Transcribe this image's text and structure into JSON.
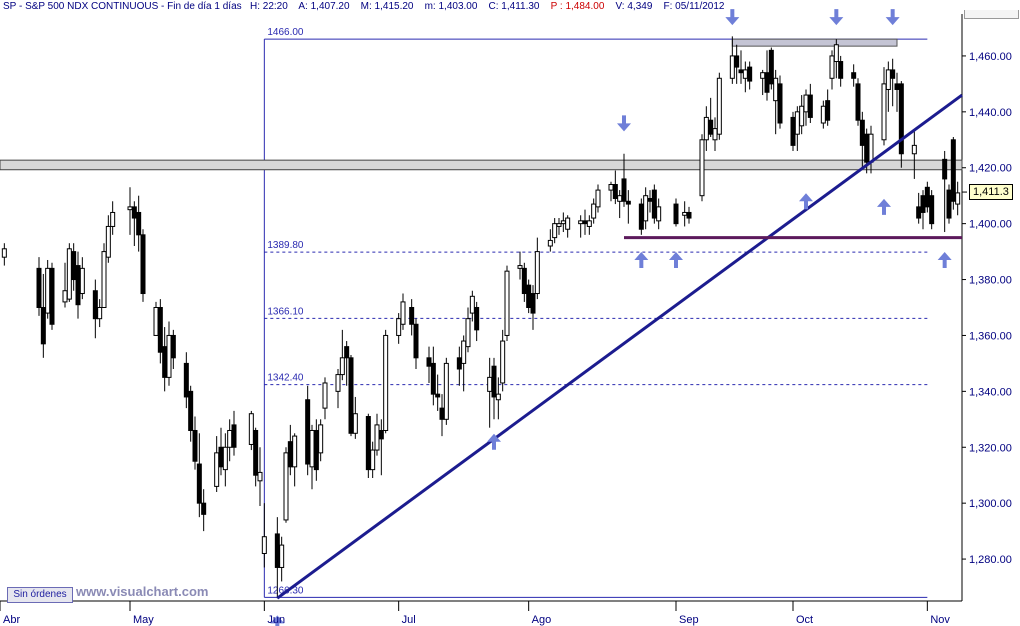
{
  "header": {
    "symbol": "SP",
    "name": "S&P 500 NDX CONTINUOUS",
    "period": "Fin de día 1 días",
    "time": "H: 22:20",
    "open": "A: 1,407.20",
    "high": "M: 1,415.20",
    "low": "m: 1,403.00",
    "close": "C: 1,411.30",
    "p": "P : 1,484.00",
    "volume": "V: 4,349",
    "date": "F: 05/11/2012"
  },
  "footer": {
    "button_label": "Sin órdenes",
    "watermark": "www.visualchart.com"
  },
  "price_tag": "1,411.3",
  "colors": {
    "axis_text": "#000080",
    "trendline": "#1c1c8f",
    "support": "#5c1a5c",
    "arrows": "#6f7fd8",
    "fib": "#2a2ab0"
  },
  "chart_data": {
    "type": "candlestick",
    "title": "S&P 500 NDX CONTINUOUS",
    "y_axis": {
      "range": [
        1265,
        1475
      ],
      "ticks": [
        1280,
        1300,
        1320,
        1340,
        1360,
        1380,
        1400,
        1420,
        1440,
        1460
      ],
      "tick_labels": [
        "1,280.00",
        "1,300.00",
        "1,320.00",
        "1,340.00",
        "1,360.00",
        "1,380.00",
        "1,400.00",
        "1,420.00",
        "1,440.00",
        "1,460.00"
      ],
      "position": "right"
    },
    "x_axis": {
      "range": [
        "2012-04-01",
        "2012-11-09"
      ],
      "ticks": [
        "2012-04-01",
        "2012-05-01",
        "2012-06-01",
        "2012-07-02",
        "2012-08-01",
        "2012-09-04",
        "2012-10-01",
        "2012-11-01"
      ],
      "tick_labels": [
        "Abr",
        "May",
        "Jun",
        "Jul",
        "Ago",
        "Sep",
        "Oct",
        "Nov"
      ]
    },
    "candles": [
      [
        "2012-04-02",
        1388,
        1393,
        1385,
        1391
      ],
      [
        "2012-04-10",
        1384,
        1388,
        1367,
        1370
      ],
      [
        "2012-04-11",
        1370,
        1382,
        1352,
        1357
      ],
      [
        "2012-04-12",
        1368,
        1387,
        1366,
        1384
      ],
      [
        "2012-04-13",
        1384,
        1386,
        1362,
        1364
      ],
      [
        "2012-04-16",
        1372,
        1386,
        1370,
        1376
      ],
      [
        "2012-04-17",
        1373,
        1393,
        1372,
        1391
      ],
      [
        "2012-04-18",
        1390,
        1393,
        1376,
        1380
      ],
      [
        "2012-04-19",
        1385,
        1390,
        1366,
        1371
      ],
      [
        "2012-04-20",
        1375,
        1388,
        1373,
        1384
      ],
      [
        "2012-04-23",
        1376,
        1380,
        1359,
        1366
      ],
      [
        "2012-04-24",
        1366,
        1373,
        1363,
        1370
      ],
      [
        "2012-04-25",
        1370,
        1393,
        1370,
        1390
      ],
      [
        "2012-04-26",
        1388,
        1403,
        1386,
        1399
      ],
      [
        "2012-04-27",
        1399,
        1408,
        1396,
        1404
      ],
      [
        "2012-05-01",
        1405,
        1413,
        1396,
        1406
      ],
      [
        "2012-05-02",
        1406,
        1408,
        1392,
        1402
      ],
      [
        "2012-05-03",
        1404,
        1410,
        1390,
        1396
      ],
      [
        "2012-05-04",
        1396,
        1398,
        1372,
        1375
      ],
      [
        "2012-05-07",
        1360,
        1372,
        1360,
        1370
      ],
      [
        "2012-05-08",
        1370,
        1373,
        1350,
        1354
      ],
      [
        "2012-05-09",
        1356,
        1363,
        1340,
        1345
      ],
      [
        "2012-05-10",
        1345,
        1365,
        1342,
        1360
      ],
      [
        "2012-05-11",
        1360,
        1362,
        1348,
        1352
      ],
      [
        "2012-05-14",
        1350,
        1354,
        1334,
        1338
      ],
      [
        "2012-05-15",
        1340,
        1342,
        1322,
        1326
      ],
      [
        "2012-05-16",
        1326,
        1331,
        1312,
        1315
      ],
      [
        "2012-05-17",
        1314,
        1325,
        1295,
        1300
      ],
      [
        "2012-05-18",
        1300,
        1305,
        1290,
        1296
      ],
      [
        "2012-05-21",
        1306,
        1324,
        1304,
        1318
      ],
      [
        "2012-05-22",
        1320,
        1327,
        1310,
        1313
      ],
      [
        "2012-05-23",
        1312,
        1325,
        1306,
        1320
      ],
      [
        "2012-05-24",
        1320,
        1330,
        1315,
        1326
      ],
      [
        "2012-05-25",
        1328,
        1333,
        1317,
        1320
      ],
      [
        "2012-05-29",
        1321,
        1333,
        1319,
        1332
      ],
      [
        "2012-05-30",
        1326,
        1327,
        1306,
        1310
      ],
      [
        "2012-05-31",
        1308,
        1320,
        1299,
        1311
      ],
      [
        "2012-06-01",
        1282,
        1300,
        1277,
        1288
      ],
      [
        "2012-06-04",
        1289,
        1295,
        1266,
        1277
      ],
      [
        "2012-06-05",
        1277,
        1288,
        1272,
        1285
      ],
      [
        "2012-06-06",
        1294,
        1320,
        1293,
        1318
      ],
      [
        "2012-06-07",
        1322,
        1328,
        1310,
        1313
      ],
      [
        "2012-06-08",
        1313,
        1325,
        1306,
        1324
      ],
      [
        "2012-06-11",
        1337,
        1342,
        1310,
        1314
      ],
      [
        "2012-06-12",
        1313,
        1328,
        1305,
        1326
      ],
      [
        "2012-06-13",
        1326,
        1330,
        1308,
        1312
      ],
      [
        "2012-06-14",
        1318,
        1330,
        1315,
        1328
      ],
      [
        "2012-06-15",
        1334,
        1345,
        1330,
        1343
      ],
      [
        "2012-06-18",
        1340,
        1348,
        1334,
        1346
      ],
      [
        "2012-06-19",
        1346,
        1362,
        1344,
        1352
      ],
      [
        "2012-06-20",
        1356,
        1358,
        1342,
        1352
      ],
      [
        "2012-06-21",
        1352,
        1353,
        1324,
        1325
      ],
      [
        "2012-06-22",
        1325,
        1338,
        1323,
        1332
      ],
      [
        "2012-06-25",
        1331,
        1332,
        1309,
        1312
      ],
      [
        "2012-06-26",
        1312,
        1322,
        1309,
        1319
      ],
      [
        "2012-06-27",
        1319,
        1332,
        1317,
        1328
      ],
      [
        "2012-06-28",
        1326,
        1330,
        1310,
        1323
      ],
      [
        "2012-06-29",
        1326,
        1362,
        1325,
        1360
      ],
      [
        "2012-07-02",
        1360,
        1368,
        1357,
        1366
      ],
      [
        "2012-07-03",
        1364,
        1375,
        1362,
        1372
      ],
      [
        "2012-07-05",
        1370,
        1373,
        1360,
        1364
      ],
      [
        "2012-07-06",
        1364,
        1366,
        1348,
        1352
      ],
      [
        "2012-07-09",
        1352,
        1356,
        1343,
        1349
      ],
      [
        "2012-07-10",
        1350,
        1356,
        1335,
        1339
      ],
      [
        "2012-07-11",
        1339,
        1346,
        1333,
        1338
      ],
      [
        "2012-07-12",
        1334,
        1339,
        1324,
        1330
      ],
      [
        "2012-07-13",
        1330,
        1352,
        1328,
        1350
      ],
      [
        "2012-07-16",
        1352,
        1356,
        1342,
        1348
      ],
      [
        "2012-07-17",
        1350,
        1360,
        1340,
        1358
      ],
      [
        "2012-07-18",
        1356,
        1370,
        1354,
        1366
      ],
      [
        "2012-07-19",
        1368,
        1376,
        1365,
        1374
      ],
      [
        "2012-07-20",
        1370,
        1372,
        1358,
        1362
      ],
      [
        "2012-07-23",
        1340,
        1352,
        1327,
        1345
      ],
      [
        "2012-07-24",
        1349,
        1352,
        1330,
        1338
      ],
      [
        "2012-07-25",
        1337,
        1345,
        1330,
        1339
      ],
      [
        "2012-07-26",
        1343,
        1362,
        1340,
        1358
      ],
      [
        "2012-07-27",
        1360,
        1385,
        1358,
        1383
      ],
      [
        "2012-07-30",
        1384,
        1390,
        1380,
        1385
      ],
      [
        "2012-07-31",
        1384,
        1386,
        1372,
        1375
      ],
      [
        "2012-08-01",
        1378,
        1380,
        1368,
        1370
      ],
      [
        "2012-08-02",
        1375,
        1378,
        1362,
        1368
      ],
      [
        "2012-08-03",
        1375,
        1395,
        1373,
        1390
      ],
      [
        "2012-08-06",
        1392,
        1398,
        1390,
        1394
      ],
      [
        "2012-08-07",
        1395,
        1402,
        1393,
        1400
      ],
      [
        "2012-08-08",
        1399,
        1402,
        1396,
        1400
      ],
      [
        "2012-08-09",
        1400,
        1404,
        1397,
        1401
      ],
      [
        "2012-08-10",
        1398,
        1403,
        1395,
        1402
      ],
      [
        "2012-08-13",
        1400,
        1403,
        1395,
        1401
      ],
      [
        "2012-08-14",
        1401,
        1405,
        1396,
        1400
      ],
      [
        "2012-08-15",
        1399,
        1403,
        1396,
        1401
      ],
      [
        "2012-08-16",
        1402,
        1409,
        1400,
        1407
      ],
      [
        "2012-08-17",
        1406,
        1414,
        1404,
        1412
      ],
      [
        "2012-08-20",
        1412,
        1415,
        1408,
        1414
      ],
      [
        "2012-08-21",
        1414,
        1419,
        1407,
        1409
      ],
      [
        "2012-08-22",
        1408,
        1412,
        1402,
        1410
      ],
      [
        "2012-08-23",
        1416,
        1425,
        1406,
        1408
      ],
      [
        "2012-08-24",
        1408,
        1412,
        1400,
        1407
      ],
      [
        "2012-08-27",
        1407,
        1409,
        1396,
        1398
      ],
      [
        "2012-08-28",
        1401,
        1413,
        1398,
        1410
      ],
      [
        "2012-08-29",
        1409,
        1412,
        1404,
        1408
      ],
      [
        "2012-08-30",
        1412,
        1414,
        1400,
        1402
      ],
      [
        "2012-08-31",
        1401,
        1409,
        1398,
        1406
      ],
      [
        "2012-09-04",
        1407,
        1409,
        1399,
        1400
      ],
      [
        "2012-09-06",
        1403,
        1408,
        1399,
        1404
      ],
      [
        "2012-09-07",
        1404,
        1406,
        1400,
        1402
      ],
      [
        "2012-09-10",
        1410,
        1432,
        1408,
        1430
      ],
      [
        "2012-09-11",
        1430,
        1442,
        1426,
        1438
      ],
      [
        "2012-09-12",
        1437,
        1445,
        1431,
        1432
      ],
      [
        "2012-09-13",
        1430,
        1438,
        1426,
        1434
      ],
      [
        "2012-09-14",
        1432,
        1454,
        1430,
        1452
      ],
      [
        "2012-09-17",
        1452,
        1467,
        1450,
        1460
      ],
      [
        "2012-09-18",
        1460,
        1464,
        1450,
        1456
      ],
      [
        "2012-09-19",
        1455,
        1462,
        1450,
        1454
      ],
      [
        "2012-09-20",
        1452,
        1458,
        1447,
        1455
      ],
      [
        "2012-09-21",
        1456,
        1458,
        1448,
        1451
      ],
      [
        "2012-09-24",
        1452,
        1455,
        1446,
        1454
      ],
      [
        "2012-09-25",
        1454,
        1462,
        1444,
        1447
      ],
      [
        "2012-09-26",
        1462,
        1463,
        1448,
        1450
      ],
      [
        "2012-09-27",
        1444,
        1455,
        1432,
        1452
      ],
      [
        "2012-09-28",
        1450,
        1453,
        1434,
        1436
      ],
      [
        "2012-10-01",
        1438,
        1440,
        1426,
        1428
      ],
      [
        "2012-10-02",
        1432,
        1442,
        1426,
        1440
      ],
      [
        "2012-10-03",
        1435,
        1446,
        1432,
        1442
      ],
      [
        "2012-10-04",
        1440,
        1448,
        1435,
        1446
      ],
      [
        "2012-10-05",
        1446,
        1450,
        1436,
        1438
      ],
      [
        "2012-10-08",
        1436,
        1444,
        1434,
        1442
      ],
      [
        "2012-10-09",
        1444,
        1448,
        1435,
        1437
      ],
      [
        "2012-10-10",
        1452,
        1462,
        1448,
        1460
      ],
      [
        "2012-10-11",
        1458,
        1466,
        1452,
        1464
      ],
      [
        "2012-10-12",
        1458,
        1460,
        1449,
        1452
      ],
      [
        "2012-10-15",
        1454,
        1457,
        1449,
        1452
      ],
      [
        "2012-10-16",
        1450,
        1452,
        1435,
        1437
      ],
      [
        "2012-10-17",
        1437,
        1440,
        1420,
        1428
      ],
      [
        "2012-10-18",
        1432,
        1434,
        1418,
        1422
      ],
      [
        "2012-10-19",
        1422,
        1435,
        1418,
        1432
      ],
      [
        "2012-10-22",
        1430,
        1456,
        1428,
        1450
      ],
      [
        "2012-10-23",
        1448,
        1458,
        1440,
        1455
      ],
      [
        "2012-10-24",
        1455,
        1459,
        1442,
        1452
      ],
      [
        "2012-10-25",
        1450,
        1454,
        1440,
        1448
      ],
      [
        "2012-10-26",
        1450,
        1451,
        1420,
        1425
      ],
      [
        "2012-10-29",
        1425,
        1433,
        1416,
        1428
      ],
      [
        "2012-10-30",
        1406,
        1411,
        1400,
        1402
      ],
      [
        "2012-10-31",
        1410,
        1412,
        1398,
        1404
      ],
      [
        "2012-11-01",
        1413,
        1415,
        1404,
        1406
      ],
      [
        "2012-11-02",
        1410,
        1412,
        1398,
        1400
      ],
      [
        "2012-11-05",
        1423,
        1426,
        1397,
        1416
      ],
      [
        "2012-11-06",
        1412,
        1414,
        1400,
        1402
      ],
      [
        "2012-11-07",
        1430,
        1431,
        1405,
        1408
      ],
      [
        "2012-11-08",
        1407,
        1415,
        1403,
        1411
      ]
    ],
    "fibonacci": {
      "levels": [
        1266.3,
        1342.4,
        1366.1,
        1389.8,
        1466.0
      ],
      "labels": [
        "1266.30",
        "1342.40",
        "1366.10",
        "1389.80",
        "1466.00"
      ],
      "start": "2012-06-01",
      "end": "2012-11-01"
    },
    "trendline": {
      "from": [
        "2012-06-04",
        1266
      ],
      "to": [
        "2012-11-09",
        1446
      ]
    },
    "support_line": {
      "value": 1395,
      "from": "2012-08-23",
      "to": "2012-11-09"
    },
    "resistance_band": {
      "low": 1420,
      "high": 1422,
      "from": "2012-04-01",
      "to": "2012-11-09"
    },
    "top_band": {
      "low": 1463.5,
      "high": 1466,
      "from": "2012-09-17",
      "to": "2012-10-25"
    },
    "arrows_down": [
      [
        "2012-08-23",
        1428
      ],
      [
        "2012-09-17",
        1466
      ],
      [
        "2012-10-11",
        1466
      ],
      [
        "2012-10-24",
        1466
      ]
    ],
    "arrows_up": [
      [
        "2012-06-04",
        1262
      ],
      [
        "2012-07-24",
        1327
      ],
      [
        "2012-08-27",
        1392
      ],
      [
        "2012-09-04",
        1392
      ],
      [
        "2012-10-04",
        1413
      ],
      [
        "2012-10-22",
        1411
      ],
      [
        "2012-11-05",
        1392
      ]
    ],
    "last_price": 1411.3
  }
}
